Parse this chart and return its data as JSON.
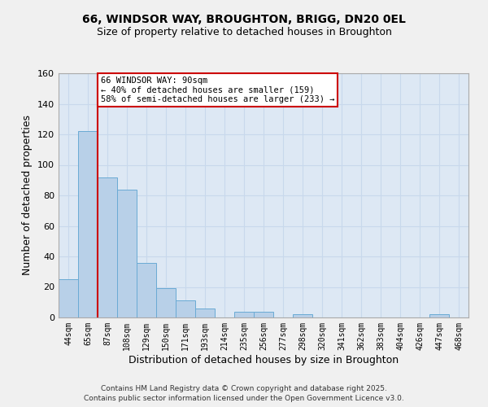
{
  "title1": "66, WINDSOR WAY, BROUGHTON, BRIGG, DN20 0EL",
  "title2": "Size of property relative to detached houses in Broughton",
  "xlabel": "Distribution of detached houses by size in Broughton",
  "ylabel": "Number of detached properties",
  "categories": [
    "44sqm",
    "65sqm",
    "87sqm",
    "108sqm",
    "129sqm",
    "150sqm",
    "171sqm",
    "193sqm",
    "214sqm",
    "235sqm",
    "256sqm",
    "277sqm",
    "298sqm",
    "320sqm",
    "341sqm",
    "362sqm",
    "383sqm",
    "404sqm",
    "426sqm",
    "447sqm",
    "468sqm"
  ],
  "values": [
    25,
    122,
    92,
    84,
    36,
    19,
    11,
    6,
    0,
    4,
    4,
    0,
    2,
    0,
    0,
    0,
    0,
    0,
    0,
    2,
    0
  ],
  "bar_color": "#b8d0e8",
  "bar_edge_color": "#6aaad4",
  "grid_color": "#c8d8ec",
  "background_color": "#dde8f4",
  "annotation_line1": "66 WINDSOR WAY: 90sqm",
  "annotation_line2": "← 40% of detached houses are smaller (159)",
  "annotation_line3": "58% of semi-detached houses are larger (233) →",
  "red_line_color": "#cc0000",
  "annotation_box_color": "#ffffff",
  "annotation_box_edge_color": "#cc0000",
  "ylim": [
    0,
    160
  ],
  "yticks": [
    0,
    20,
    40,
    60,
    80,
    100,
    120,
    140,
    160
  ],
  "footer1": "Contains HM Land Registry data © Crown copyright and database right 2025.",
  "footer2": "Contains public sector information licensed under the Open Government Licence v3.0.",
  "fig_bg": "#f0f0f0"
}
